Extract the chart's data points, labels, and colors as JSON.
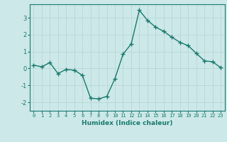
{
  "x": [
    0,
    1,
    2,
    3,
    4,
    5,
    6,
    7,
    8,
    9,
    10,
    11,
    12,
    13,
    14,
    15,
    16,
    17,
    18,
    19,
    20,
    21,
    22,
    23
  ],
  "y": [
    0.2,
    0.1,
    0.35,
    -0.3,
    -0.05,
    -0.1,
    -0.4,
    -1.75,
    -1.8,
    -1.65,
    -0.6,
    0.85,
    1.45,
    3.45,
    2.85,
    2.45,
    2.2,
    1.85,
    1.55,
    1.35,
    0.9,
    0.45,
    0.4,
    0.05
  ],
  "line_color": "#1a7a6e",
  "marker": "+",
  "bg_color": "#cce8e8",
  "grid_color": "#b8d8d8",
  "xlabel": "Humidex (Indice chaleur)",
  "ylim": [
    -2.5,
    3.8
  ],
  "xlim": [
    -0.5,
    23.5
  ],
  "yticks": [
    -2,
    -1,
    0,
    1,
    2,
    3
  ],
  "xticks": [
    0,
    1,
    2,
    3,
    4,
    5,
    6,
    7,
    8,
    9,
    10,
    11,
    12,
    13,
    14,
    15,
    16,
    17,
    18,
    19,
    20,
    21,
    22,
    23
  ]
}
